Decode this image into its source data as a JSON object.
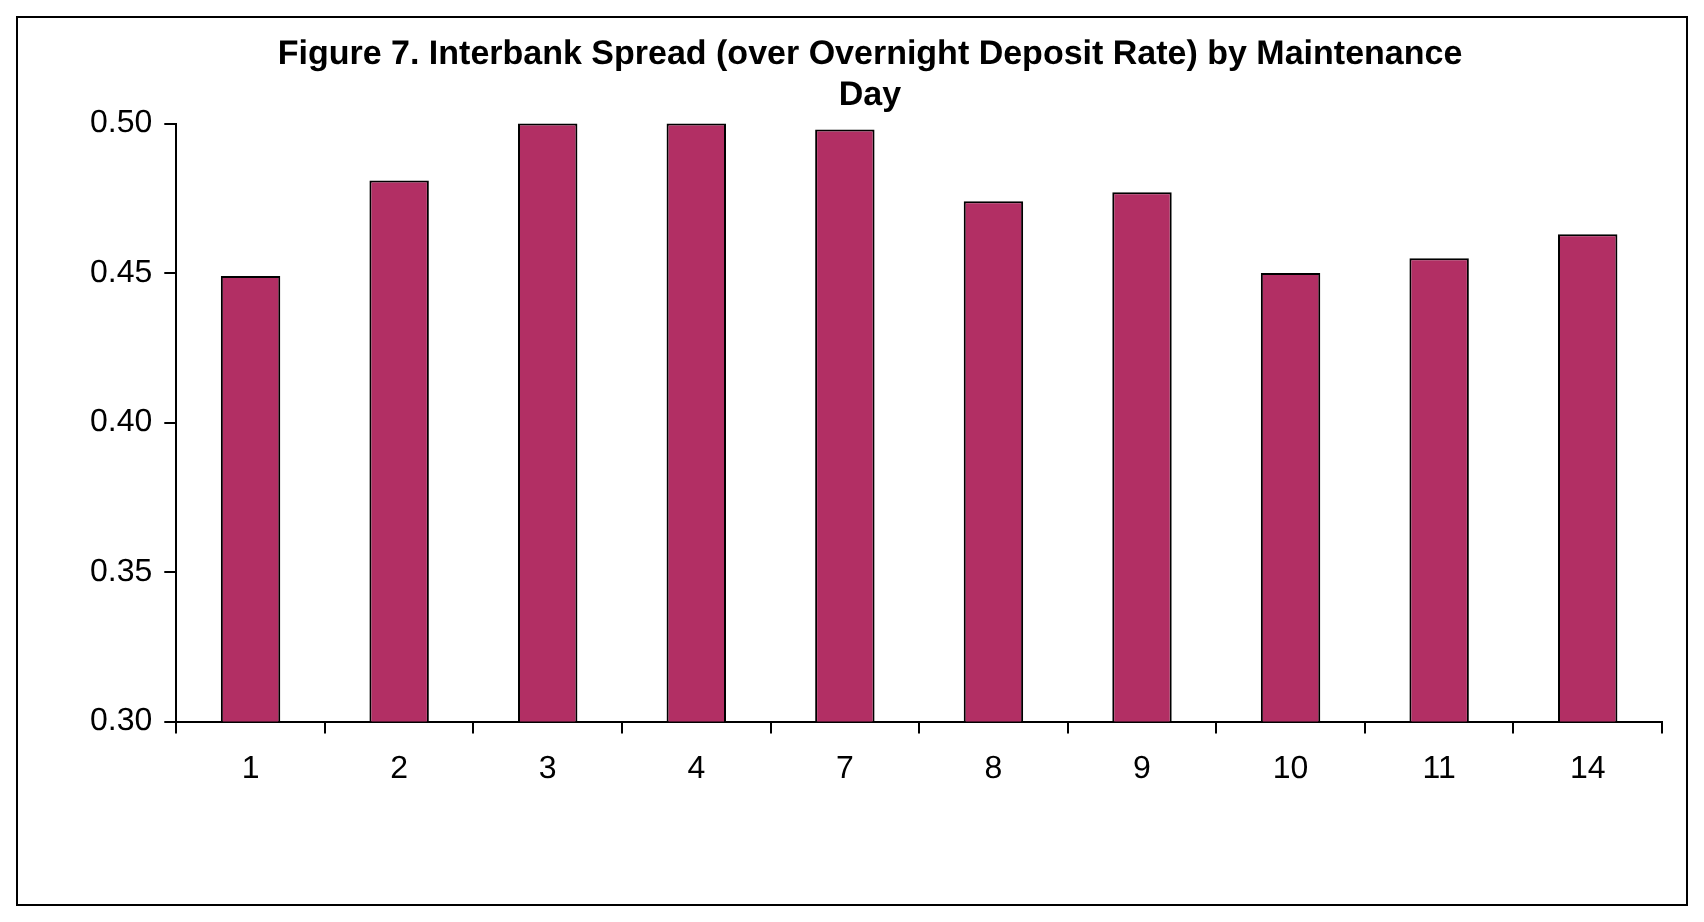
{
  "chart_data": {
    "type": "bar",
    "title": "Figure 7. Interbank Spread (over Overnight Deposit Rate) by Maintenance Day",
    "categories": [
      "1",
      "2",
      "3",
      "4",
      "7",
      "8",
      "9",
      "10",
      "11",
      "14"
    ],
    "values": [
      0.449,
      0.481,
      0.5,
      0.5,
      0.498,
      0.474,
      0.477,
      0.45,
      0.455,
      0.463
    ],
    "color": "#b22f64",
    "ylim": [
      0.3,
      0.5
    ],
    "yticks": [
      {
        "value": 0.3,
        "label": "0.30"
      },
      {
        "value": 0.35,
        "label": "0.35"
      },
      {
        "value": 0.4,
        "label": "0.40"
      },
      {
        "value": 0.45,
        "label": "0.45"
      },
      {
        "value": 0.5,
        "label": "0.50"
      }
    ],
    "grid": false,
    "legend": false
  }
}
